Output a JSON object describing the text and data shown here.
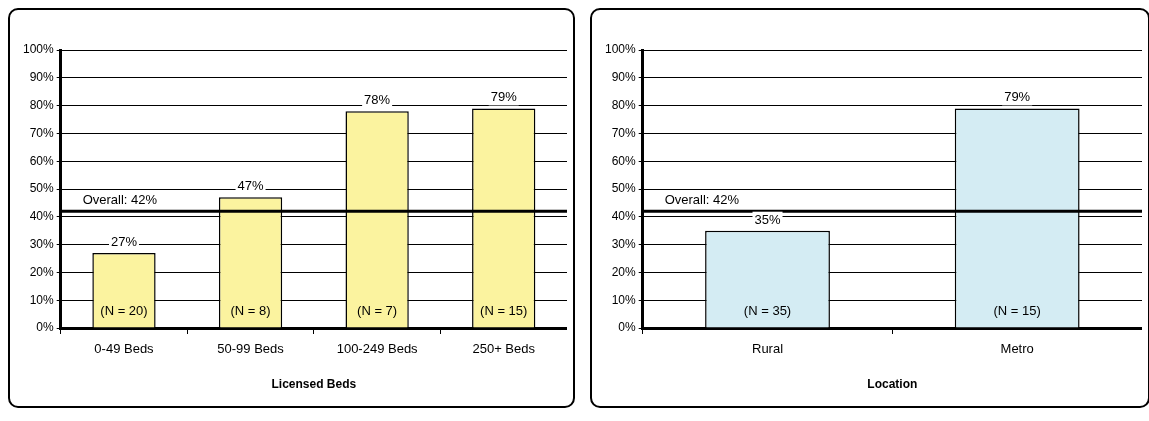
{
  "chart_data": [
    {
      "type": "bar",
      "xlabel": "Licensed Beds",
      "categories": [
        "0-49 Beds",
        "50-99 Beds",
        "100-249 Beds",
        "250+ Beds"
      ],
      "values": [
        27,
        47,
        78,
        79
      ],
      "color": "#fbf39f",
      "value_labels": [
        "27%",
        "47%",
        "78%",
        "79%"
      ],
      "ylim": [
        0,
        100
      ],
      "yticks": [
        {
          "value": 0,
          "label": "0%"
        },
        {
          "value": 10,
          "label": "10%"
        },
        {
          "value": 20,
          "label": "20%"
        },
        {
          "value": 30,
          "label": "30%"
        },
        {
          "value": 40,
          "label": "40%"
        },
        {
          "value": 50,
          "label": "50%"
        },
        {
          "value": 60,
          "label": "60%"
        },
        {
          "value": 70,
          "label": "70%"
        },
        {
          "value": 80,
          "label": "80%"
        },
        {
          "value": 90,
          "label": "90%"
        },
        {
          "value": 100,
          "label": "100%"
        }
      ],
      "grid": "y",
      "legend": false,
      "ref_lines": [
        {
          "axis": "y",
          "value": 42,
          "label": "Overall: 42%"
        }
      ],
      "annotations": [
        "(N = 20)",
        "(N = 8)",
        "(N = 7)",
        "(N = 15)"
      ]
    },
    {
      "type": "bar",
      "xlabel": "Location",
      "categories": [
        "Rural",
        "Metro"
      ],
      "values": [
        35,
        79
      ],
      "color": "#d4ecf3",
      "value_labels": [
        "35%",
        "79%"
      ],
      "ylim": [
        0,
        100
      ],
      "yticks": [
        {
          "value": 0,
          "label": "0%"
        },
        {
          "value": 10,
          "label": "10%"
        },
        {
          "value": 20,
          "label": "20%"
        },
        {
          "value": 30,
          "label": "30%"
        },
        {
          "value": 40,
          "label": "40%"
        },
        {
          "value": 50,
          "label": "50%"
        },
        {
          "value": 60,
          "label": "60%"
        },
        {
          "value": 70,
          "label": "70%"
        },
        {
          "value": 80,
          "label": "80%"
        },
        {
          "value": 90,
          "label": "90%"
        },
        {
          "value": 100,
          "label": "100%"
        }
      ],
      "grid": "y",
      "legend": false,
      "ref_lines": [
        {
          "axis": "y",
          "value": 42,
          "label": "Overall: 42%"
        }
      ],
      "annotations": [
        "(N = 35)",
        "(N = 15)"
      ]
    }
  ]
}
